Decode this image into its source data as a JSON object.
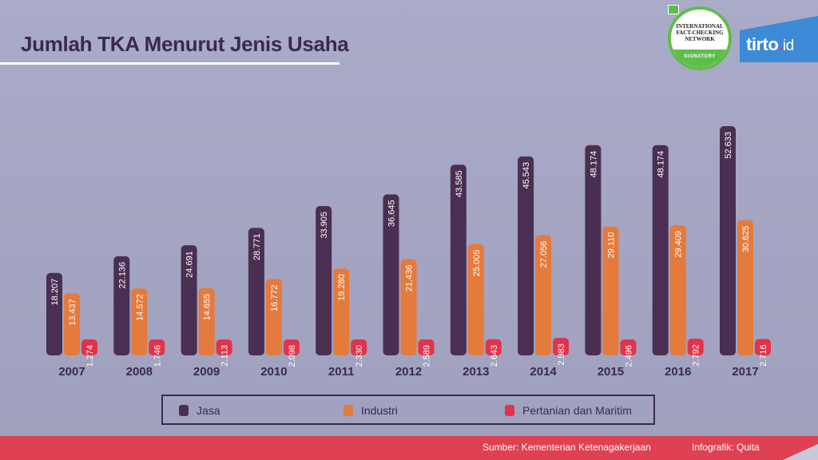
{
  "title": "Jumlah TKA Menurut Jenis Usaha",
  "badge": {
    "fc_text": "INTERNATIONAL FACT-CHECKING NETWORK",
    "fc_band": "SIGNATORY"
  },
  "logo": {
    "name": "tirto",
    "dot": ".",
    "suffix": "id"
  },
  "colors": {
    "jasa": "#4a2f52",
    "industri": "#e47a3c",
    "pertanian": "#e2334a",
    "title": "#3a2a4e",
    "footer": "#df4152"
  },
  "chart_data": {
    "type": "bar",
    "title": "Jumlah TKA Menurut Jenis Usaha",
    "xlabel": "",
    "ylabel": "",
    "categories": [
      "2007",
      "2008",
      "2009",
      "2010",
      "2011",
      "2012",
      "2013",
      "2014",
      "2015",
      "2016",
      "2017"
    ],
    "series": [
      {
        "name": "Jasa",
        "values": [
          18207,
          22136,
          24691,
          28771,
          33905,
          36645,
          43585,
          45543,
          48174,
          48174,
          52633
        ],
        "labels": [
          "18.207",
          "22.136",
          "24.691",
          "28.771",
          "33.905",
          "36.645",
          "43.585",
          "45.543",
          "48.174",
          "48.174",
          "52.633"
        ]
      },
      {
        "name": "Industri",
        "values": [
          13437,
          14572,
          14655,
          16772,
          19280,
          21436,
          25005,
          27056,
          29110,
          29409,
          30625
        ],
        "labels": [
          "13.437",
          "14.572",
          "14.655",
          "16.772",
          "19.280",
          "21.436",
          "25.005",
          "27.056",
          "29.110",
          "29.409",
          "30.625"
        ]
      },
      {
        "name": "Pertanian dan Maritim",
        "values": [
          1274,
          1746,
          2113,
          2098,
          2330,
          2589,
          2643,
          2983,
          2496,
          2792,
          2716
        ],
        "labels": [
          "1.274",
          "1.746",
          "2.113",
          "2.098",
          "2.330",
          "2.589",
          "2.643",
          "2.983",
          "2.496",
          "2.792",
          "2.716"
        ]
      }
    ],
    "legend_position": "bottom",
    "grid": false
  },
  "legend": {
    "jasa": "Jasa",
    "industri": "Industri",
    "pertanian": "Pertanian dan Maritim"
  },
  "footer": {
    "source": "Sumber:  Kementerian Ketenagakerjaan",
    "credit": "Infografik: Quita"
  }
}
